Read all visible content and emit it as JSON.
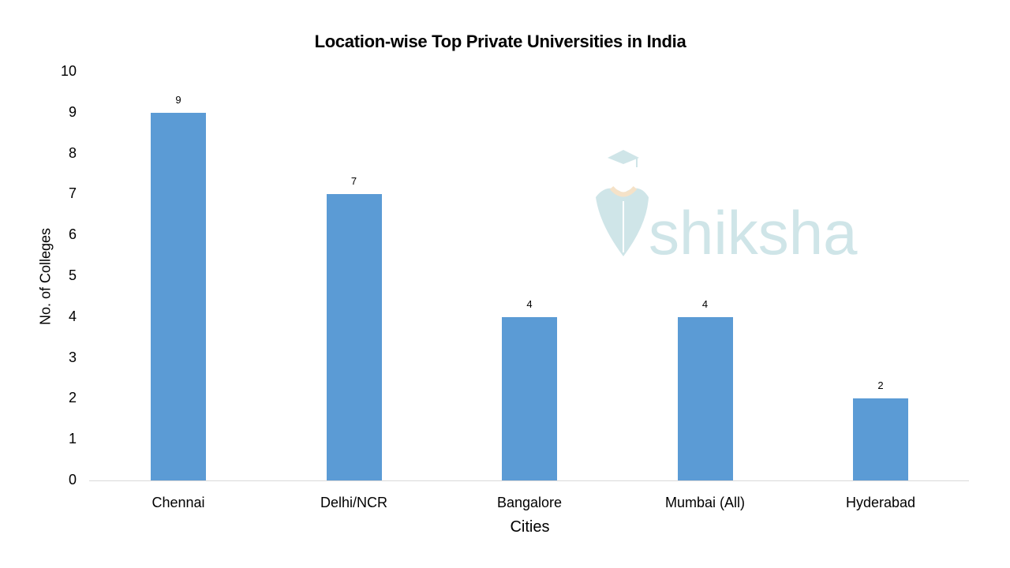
{
  "chart_data": {
    "type": "bar",
    "title": "Location-wise Top Private Universities in India",
    "xlabel": "Cities",
    "ylabel": "No. of Colleges",
    "categories": [
      "Chennai",
      "Delhi/NCR",
      "Bangalore",
      "Mumbai (All)",
      "Hyderabad"
    ],
    "values": [
      9,
      7,
      4,
      4,
      2
    ],
    "data_labels": [
      "9",
      "7",
      "4",
      "4",
      "2"
    ],
    "ylim": [
      0,
      10
    ],
    "yticks": [
      "0",
      "1",
      "2",
      "3",
      "4",
      "5",
      "6",
      "7",
      "8",
      "9",
      "10"
    ],
    "grid": false,
    "legend": "none",
    "bar_color": "#5b9bd5"
  },
  "watermark": {
    "text": "shiksha",
    "color": "#cfe5e8"
  }
}
